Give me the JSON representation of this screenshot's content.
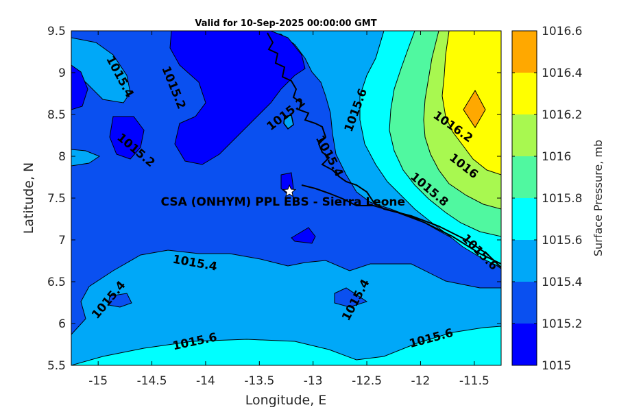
{
  "chart_data": {
    "type": "contour",
    "title": "Valid for 10-Sep-2025 00:00:00 GMT",
    "xlabel": "Longitude, E",
    "ylabel": "Latitude, N",
    "xlim": [
      -15.25,
      -11.25
    ],
    "ylim": [
      5.5,
      9.5
    ],
    "xticks": [
      "-15",
      "-14.5",
      "-14",
      "-13.5",
      "-13",
      "-12.5",
      "-12",
      "-11.5"
    ],
    "yticks": [
      "5.5",
      "6",
      "6.5",
      "7",
      "7.5",
      "8",
      "8.5",
      "9",
      "9.5"
    ],
    "colorbar": {
      "label": "Surface Pressure, mb",
      "levels": [
        "1015",
        "1015.2",
        "1015.4",
        "1015.6",
        "1015.8",
        "1016",
        "1016.2",
        "1016.4",
        "1016.6"
      ],
      "colors": [
        "#0000ff",
        "#0a50f0",
        "#00a8f8",
        "#00ffff",
        "#50f8a0",
        "#a8f850",
        "#ffff00",
        "#ffa800",
        "#ff5000"
      ]
    },
    "contour_labels": [
      {
        "text": "1015.4",
        "lon": -14.8,
        "lat": 8.95
      },
      {
        "text": "1015.2",
        "lon": -14.3,
        "lat": 8.82
      },
      {
        "text": "1015.2",
        "lon": -13.25,
        "lat": 8.5
      },
      {
        "text": "1015.2",
        "lon": -14.65,
        "lat": 8.07
      },
      {
        "text": "1015.6",
        "lon": -12.6,
        "lat": 8.55
      },
      {
        "text": "1015.4",
        "lon": -12.85,
        "lat": 8.0
      },
      {
        "text": "1016.2",
        "lon": -11.7,
        "lat": 8.35
      },
      {
        "text": "1016",
        "lon": -11.6,
        "lat": 7.88
      },
      {
        "text": "1015.8",
        "lon": -11.92,
        "lat": 7.6
      },
      {
        "text": "1015.6",
        "lon": -11.45,
        "lat": 6.85
      },
      {
        "text": "1015.4",
        "lon": -14.1,
        "lat": 6.72
      },
      {
        "text": "1015.4",
        "lon": -14.9,
        "lat": 6.28
      },
      {
        "text": "1015.4",
        "lon": -12.6,
        "lat": 6.28
      },
      {
        "text": "1015.6",
        "lon": -14.1,
        "lat": 5.78
      },
      {
        "text": "1015.6",
        "lon": -11.9,
        "lat": 5.82
      }
    ],
    "marker": {
      "symbol": "star",
      "lon": -13.22,
      "lat": 7.58
    },
    "annotation": {
      "text": "CSA (ONHYM) PPL EBS  - Sierra Leone",
      "lon": -13.28,
      "lat": 7.46
    }
  }
}
